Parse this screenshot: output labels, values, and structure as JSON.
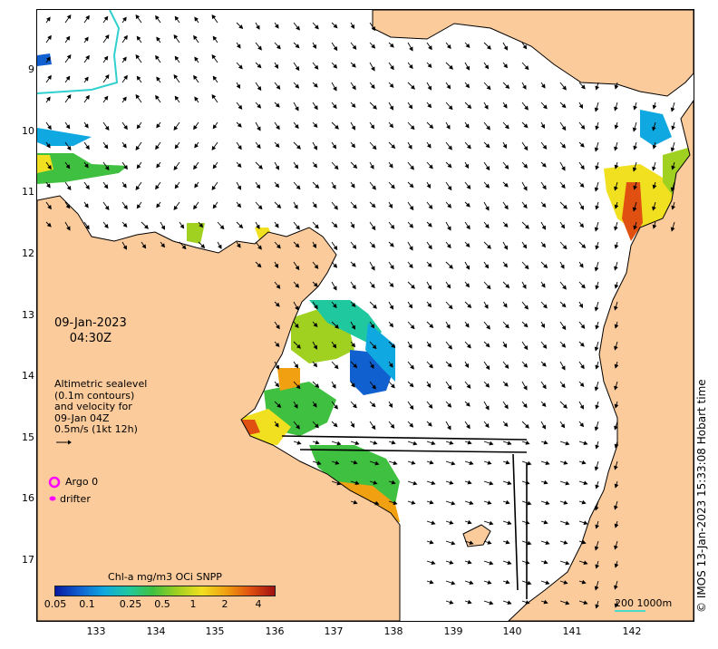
{
  "map": {
    "date": "09-Jan-2023",
    "time": "04:30Z",
    "info_lines": [
      "Altimetric sealevel",
      "(0.1m contours)",
      "and velocity for",
      "09-Jan 04Z",
      "0.5m/s (1kt 12h)"
    ],
    "lat_ticks": [
      "9",
      "10",
      "11",
      "12",
      "13",
      "14",
      "15",
      "16",
      "17"
    ],
    "lon_ticks": [
      "133",
      "134",
      "135",
      "136",
      "137",
      "138",
      "139",
      "140",
      "141",
      "142"
    ],
    "legend": {
      "argo_label": "Argo 0",
      "drifter_label": "drifter",
      "argo_color": "#ff00ff",
      "drifter_color": "#ff00ff"
    },
    "colorbar": {
      "title": "Chl-a mg/m3 OCi SNPP",
      "labels": [
        "0.05",
        "0.1",
        "0.25",
        "0.5",
        "1",
        "2",
        "4"
      ],
      "colors": [
        "#0a1aa0",
        "#1060d0",
        "#10a8e0",
        "#20c8a0",
        "#40c040",
        "#a0d020",
        "#f0e020",
        "#f0a010",
        "#e05010",
        "#a01010"
      ]
    },
    "scale_label": "200  1000m",
    "credit": "© IMOS 13-Jan-2023 15:33:08 Hobart time",
    "colors": {
      "land": "#fbcb9c",
      "sea": "#ffffff",
      "coast": "#000000"
    }
  }
}
